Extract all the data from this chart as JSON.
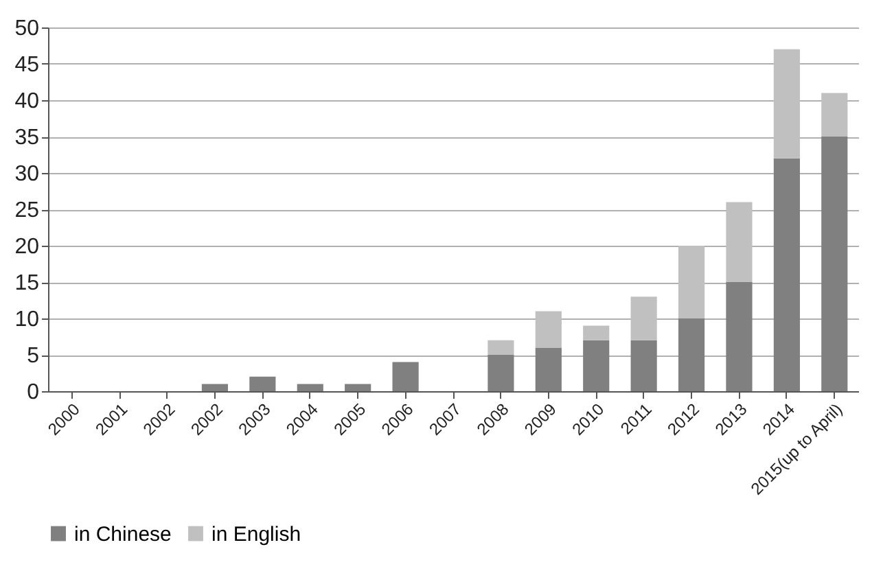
{
  "chart_data": {
    "type": "bar",
    "stacked": true,
    "categories": [
      "2000",
      "2001",
      "2002",
      "2002",
      "2003",
      "2004",
      "2005",
      "2006",
      "2007",
      "2008",
      "2009",
      "2010",
      "2011",
      "2012",
      "2013",
      "2014",
      "2015(up to April)"
    ],
    "series": [
      {
        "name": "in Chinese",
        "color": "#808080",
        "values": [
          0,
          0,
          0,
          1,
          2,
          1,
          1,
          4,
          0,
          5,
          6,
          7,
          7,
          10,
          15,
          32,
          35
        ]
      },
      {
        "name": "in English",
        "color": "#c0c0c0",
        "values": [
          0,
          0,
          0,
          0,
          0,
          0,
          0,
          0,
          0,
          2,
          5,
          2,
          6,
          10,
          11,
          15,
          6
        ]
      }
    ],
    "ylim": [
      0,
      50
    ],
    "yticks": [
      0,
      5,
      10,
      15,
      20,
      25,
      30,
      35,
      40,
      45,
      50
    ],
    "grid": "y",
    "legend": "bottom"
  }
}
